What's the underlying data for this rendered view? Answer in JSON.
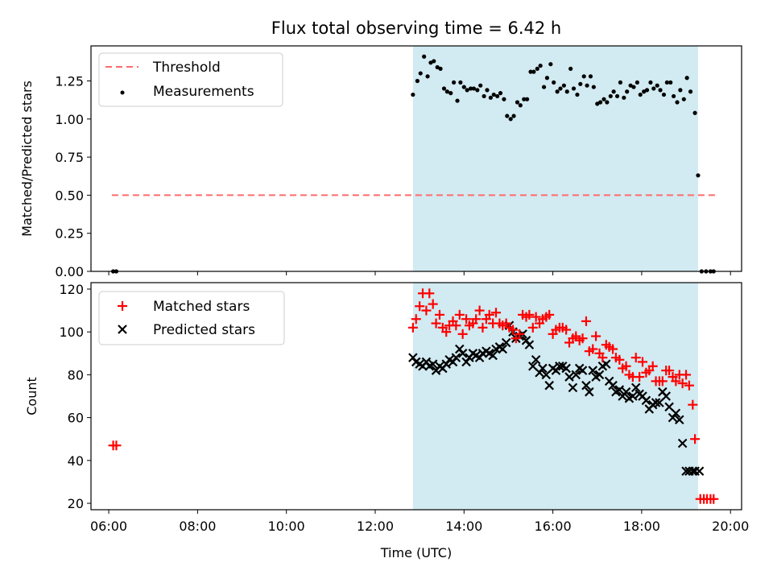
{
  "figure_title": "Flux total observing time = 6.42 h",
  "colors": {
    "shade": "#add8e6",
    "threshold": "#ff6b6b",
    "matched": "#ff0000",
    "predicted": "#000000",
    "measurement": "#000000"
  },
  "chart_data": [
    {
      "type": "scatter",
      "ylabel": "Matched/Predicted stars",
      "xlim": [
        5.6,
        20.25
      ],
      "ylim": [
        0,
        1.48
      ],
      "grid": false,
      "legend_position": "top-left",
      "yticks": [
        0.0,
        0.25,
        0.5,
        0.75,
        1.0,
        1.25
      ],
      "ytick_labels": [
        "0.00",
        "0.25",
        "0.50",
        "0.75",
        "1.00",
        "1.25"
      ],
      "shaded_interval": [
        12.85,
        19.27
      ],
      "legend": [
        "Threshold",
        "Measurements"
      ],
      "threshold": {
        "name": "Threshold",
        "x": [
          6.07,
          19.65
        ],
        "y": 0.5
      },
      "measurements": {
        "name": "Measurements",
        "x": [
          6.1,
          6.17,
          12.85,
          12.95,
          13.02,
          13.1,
          13.18,
          13.25,
          13.32,
          13.4,
          13.47,
          13.55,
          13.62,
          13.7,
          13.77,
          13.85,
          13.92,
          14.0,
          14.07,
          14.15,
          14.22,
          14.3,
          14.37,
          14.45,
          14.52,
          14.6,
          14.67,
          14.75,
          14.82,
          14.9,
          14.97,
          15.05,
          15.12,
          15.2,
          15.27,
          15.35,
          15.42,
          15.5,
          15.57,
          15.65,
          15.72,
          15.8,
          15.87,
          15.95,
          16.02,
          16.1,
          16.17,
          16.25,
          16.32,
          16.4,
          16.47,
          16.55,
          16.62,
          16.7,
          16.77,
          16.85,
          16.92,
          17.0,
          17.07,
          17.15,
          17.22,
          17.3,
          17.37,
          17.45,
          17.52,
          17.6,
          17.67,
          17.75,
          17.82,
          17.9,
          17.97,
          18.05,
          18.12,
          18.2,
          18.27,
          18.35,
          18.42,
          18.5,
          18.57,
          18.65,
          18.72,
          18.8,
          18.87,
          18.95,
          19.02,
          19.1,
          19.2,
          19.27,
          19.35,
          19.45,
          19.55,
          19.62
        ],
        "y": [
          0.0,
          0.0,
          1.16,
          1.25,
          1.3,
          1.41,
          1.28,
          1.37,
          1.38,
          1.34,
          1.33,
          1.2,
          1.18,
          1.17,
          1.24,
          1.12,
          1.24,
          1.21,
          1.19,
          1.2,
          1.2,
          1.19,
          1.22,
          1.15,
          1.19,
          1.14,
          1.16,
          1.15,
          1.17,
          1.13,
          1.02,
          1.0,
          1.02,
          1.11,
          1.09,
          1.13,
          1.13,
          1.31,
          1.31,
          1.33,
          1.35,
          1.21,
          1.27,
          1.36,
          1.24,
          1.18,
          1.2,
          1.22,
          1.18,
          1.33,
          1.2,
          1.16,
          1.23,
          1.28,
          1.22,
          1.28,
          1.21,
          1.1,
          1.11,
          1.13,
          1.11,
          1.15,
          1.18,
          1.15,
          1.24,
          1.14,
          1.18,
          1.22,
          1.21,
          1.24,
          1.16,
          1.18,
          1.19,
          1.24,
          1.2,
          1.22,
          1.19,
          1.16,
          1.24,
          1.24,
          1.15,
          1.11,
          1.19,
          1.13,
          1.27,
          1.18,
          1.04,
          0.63,
          0.0,
          0.0,
          0.0,
          0.0
        ]
      }
    },
    {
      "type": "scatter",
      "xlabel": "Time (UTC)",
      "ylabel": "Count",
      "xlim": [
        5.6,
        20.25
      ],
      "ylim": [
        17,
        123
      ],
      "grid": false,
      "legend_position": "top-left",
      "xticks": [
        6,
        8,
        10,
        12,
        14,
        16,
        18,
        20
      ],
      "xtick_labels": [
        "06:00",
        "08:00",
        "10:00",
        "12:00",
        "14:00",
        "16:00",
        "18:00",
        "20:00"
      ],
      "yticks": [
        20,
        40,
        60,
        80,
        100,
        120
      ],
      "shaded_interval": [
        12.85,
        19.27
      ],
      "legend": [
        "Matched stars",
        "Predicted stars"
      ],
      "series": [
        {
          "name": "Matched stars",
          "marker": "+",
          "x": [
            6.1,
            6.17,
            12.85,
            12.92,
            13.0,
            13.07,
            13.15,
            13.22,
            13.3,
            13.37,
            13.45,
            13.52,
            13.6,
            13.67,
            13.75,
            13.82,
            13.9,
            13.97,
            14.05,
            14.12,
            14.2,
            14.27,
            14.35,
            14.42,
            14.5,
            14.57,
            14.65,
            14.72,
            14.8,
            14.87,
            14.95,
            15.02,
            15.1,
            15.17,
            15.25,
            15.32,
            15.4,
            15.47,
            15.55,
            15.62,
            15.7,
            15.77,
            15.85,
            15.92,
            16.0,
            16.07,
            16.15,
            16.22,
            16.3,
            16.37,
            16.45,
            16.52,
            16.6,
            16.67,
            16.75,
            16.82,
            16.9,
            16.97,
            17.05,
            17.12,
            17.2,
            17.27,
            17.35,
            17.42,
            17.5,
            17.57,
            17.65,
            17.72,
            17.8,
            17.87,
            17.95,
            18.02,
            18.1,
            18.17,
            18.25,
            18.32,
            18.4,
            18.47,
            18.55,
            18.62,
            18.7,
            18.77,
            18.85,
            18.92,
            19.0,
            19.07,
            19.15,
            19.2,
            19.32,
            19.4,
            19.47,
            19.55,
            19.62
          ],
          "y": [
            47,
            47,
            102,
            106,
            112,
            118,
            110,
            118,
            113,
            104,
            108,
            102,
            100,
            103,
            105,
            103,
            108,
            99,
            106,
            103,
            104,
            106,
            110,
            102,
            106,
            108,
            104,
            109,
            104,
            103,
            104,
            102,
            101,
            97,
            99,
            108,
            107,
            108,
            102,
            107,
            104,
            106,
            107,
            108,
            99,
            101,
            102,
            102,
            101,
            95,
            97,
            98,
            96,
            97,
            105,
            91,
            92,
            98,
            90,
            88,
            94,
            93,
            92,
            88,
            87,
            83,
            84,
            80,
            79,
            88,
            79,
            86,
            81,
            82,
            84,
            77,
            77,
            77,
            82,
            82,
            79,
            77,
            80,
            76,
            80,
            75,
            66,
            50,
            22,
            22,
            22,
            22,
            22
          ]
        },
        {
          "name": "Predicted stars",
          "marker": "x",
          "x": [
            12.85,
            12.92,
            13.0,
            13.07,
            13.15,
            13.22,
            13.3,
            13.37,
            13.45,
            13.52,
            13.6,
            13.67,
            13.75,
            13.82,
            13.9,
            13.97,
            14.05,
            14.12,
            14.2,
            14.27,
            14.35,
            14.42,
            14.5,
            14.57,
            14.65,
            14.72,
            14.8,
            14.87,
            14.95,
            15.02,
            15.1,
            15.17,
            15.25,
            15.32,
            15.4,
            15.47,
            15.55,
            15.62,
            15.7,
            15.77,
            15.85,
            15.92,
            16.0,
            16.07,
            16.15,
            16.22,
            16.3,
            16.37,
            16.45,
            16.52,
            16.6,
            16.67,
            16.75,
            16.82,
            16.9,
            16.97,
            17.05,
            17.12,
            17.2,
            17.27,
            17.35,
            17.42,
            17.5,
            17.57,
            17.65,
            17.72,
            17.8,
            17.87,
            17.95,
            18.02,
            18.1,
            18.17,
            18.25,
            18.32,
            18.4,
            18.47,
            18.55,
            18.62,
            18.7,
            18.77,
            18.85,
            18.92,
            19.0,
            19.07,
            19.15,
            19.2,
            19.3
          ],
          "y": [
            88,
            86,
            85,
            84,
            86,
            84,
            85,
            82,
            84,
            83,
            85,
            87,
            86,
            88,
            92,
            90,
            86,
            88,
            90,
            89,
            88,
            90,
            91,
            90,
            89,
            92,
            93,
            92,
            95,
            103,
            100,
            97,
            98,
            99,
            96,
            94,
            84,
            87,
            81,
            83,
            80,
            75,
            83,
            82,
            84,
            84,
            83,
            79,
            74,
            80,
            83,
            82,
            75,
            72,
            82,
            79,
            80,
            84,
            85,
            77,
            75,
            72,
            73,
            70,
            72,
            69,
            70,
            74,
            71,
            70,
            68,
            64,
            66,
            67,
            67,
            72,
            70,
            65,
            60,
            62,
            59,
            48,
            35,
            35,
            35,
            35,
            35
          ]
        }
      ]
    }
  ]
}
